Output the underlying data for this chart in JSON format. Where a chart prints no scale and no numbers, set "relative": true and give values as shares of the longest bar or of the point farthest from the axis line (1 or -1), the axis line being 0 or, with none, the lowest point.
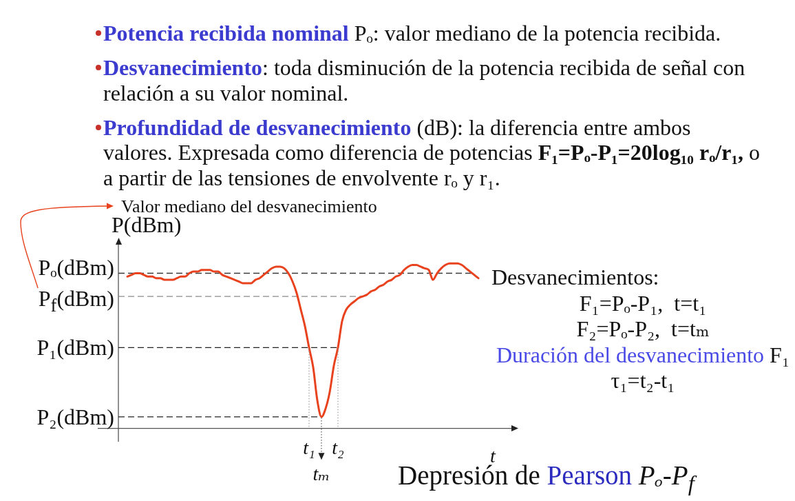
{
  "chart_data": {
    "type": "line",
    "relative": true,
    "xlabel": "t",
    "ylabel": "P(dBm)",
    "color": "#e8421e",
    "categories": [
      null,
      null,
      null,
      null,
      null,
      null,
      null,
      null,
      null,
      null,
      null,
      null,
      null,
      null,
      null,
      null,
      null,
      null,
      null,
      null,
      null,
      null,
      null,
      null,
      null,
      null,
      null,
      null,
      null,
      null,
      null,
      null,
      null,
      null,
      null,
      null,
      null,
      null,
      null,
      null,
      null,
      null,
      null,
      null,
      "t₁",
      null,
      null,
      "tₘ",
      null,
      null,
      null,
      "t₂",
      null,
      null,
      null,
      null,
      null,
      null,
      null,
      null,
      null,
      null,
      null,
      null,
      null,
      null,
      null,
      null,
      null,
      null,
      null,
      null,
      null,
      null,
      null,
      null,
      null,
      null,
      null,
      null,
      null,
      null,
      null,
      null,
      null,
      null
    ],
    "values": [
      0.92,
      0.93,
      0.94,
      0.94,
      0.93,
      0.92,
      0.92,
      0.91,
      0.91,
      0.9,
      0.9,
      0.9,
      0.91,
      0.92,
      0.92,
      0.94,
      0.95,
      0.95,
      0.96,
      0.96,
      0.96,
      0.95,
      0.95,
      0.93,
      0.92,
      0.91,
      0.9,
      0.89,
      0.88,
      0.88,
      0.88,
      0.9,
      0.91,
      0.93,
      0.95,
      0.97,
      0.98,
      0.98,
      0.97,
      0.94,
      0.89,
      0.82,
      0.72,
      0.62,
      0.49,
      0.37,
      0.17,
      0.07,
      0.12,
      0.22,
      0.38,
      0.49,
      0.65,
      0.72,
      0.75,
      0.77,
      0.79,
      0.8,
      0.81,
      0.83,
      0.84,
      0.86,
      0.87,
      0.89,
      0.9,
      0.92,
      0.93,
      0.96,
      0.98,
      0.99,
      0.99,
      0.98,
      0.97,
      0.96,
      0.9,
      0.94,
      0.97,
      0.99,
      1.0,
      1.0,
      1.0,
      0.99,
      0.97,
      0.95,
      0.93,
      0.91
    ],
    "ref_lines": [
      {
        "axis": "y",
        "value": 0.94,
        "label": "Pₒ(dBm)",
        "color": "#3a3a3a",
        "line_style": "dashed"
      },
      {
        "axis": "y",
        "value": 0.8,
        "label": "P$_{f}$(dBm)",
        "color": "#8a8a8a",
        "line_style": "dashed"
      },
      {
        "axis": "y",
        "value": 0.49,
        "label": "P₁(dBm)",
        "color": "#222222",
        "line_style": "dashed"
      },
      {
        "axis": "y",
        "value": 0.07,
        "label": "P₂(dBm)",
        "color": "#222222",
        "line_style": "dashed"
      },
      {
        "axis": "x",
        "value": "t₁",
        "color": "#9a9a9a",
        "line_style": "dotted"
      },
      {
        "axis": "x",
        "value": "t₂",
        "color": "#9a9a9a",
        "line_style": "dotted"
      }
    ],
    "annotations": [
      "Potencia recibida nominal",
      "Pₒ: valor mediano de la potencia recibida.",
      "Desvanecimiento",
      ": toda disminución de la potencia recibida de señal con",
      "relación a su valor nominal.",
      "Profundidad de desvanecimiento",
      "(dB): la diferencia entre ambos",
      "valores. Expresada como diferencia de potencias",
      "F₁=Pₒ-P₁=20log₁₀ rₒ/r₁,",
      "o",
      "a partir de las tensiones de envolvente rₒ y r₁.",
      "Valor mediano del desvanecimiento",
      "Desvanecimientos:",
      "F₁=Pₒ-P₁,  t=t₁",
      "F₂=Pₒ-P₂,  t=tₘ",
      "Duración del desvanecimiento",
      "F₁",
      "τ₁=t₂-t₁",
      "Depresión de",
      "Pearson",
      "Pₒ-P$_{f}$"
    ]
  }
}
